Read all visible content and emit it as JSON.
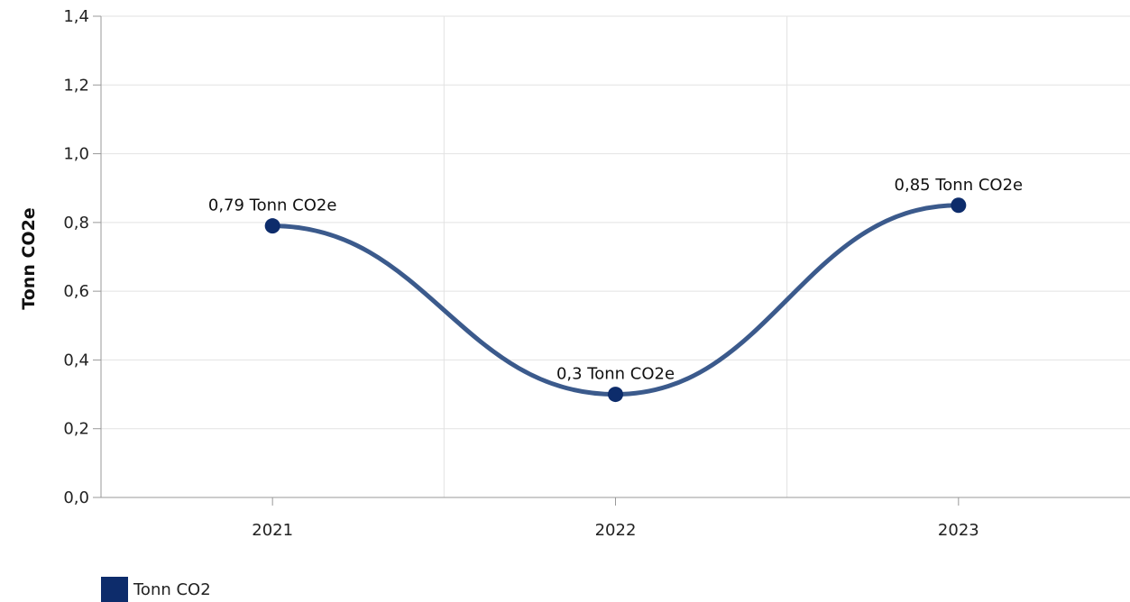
{
  "chart_data": {
    "type": "line",
    "categories": [
      "2021",
      "2022",
      "2023"
    ],
    "series": [
      {
        "name": "Tonn CO2",
        "values": [
          0.79,
          0.3,
          0.85
        ],
        "data_labels": [
          "0,79 Tonn CO2e",
          "0,3 Tonn CO2e",
          "0,85 Tonn CO2e"
        ],
        "color": "#3b5a8c",
        "marker_color": "#0d2c6b"
      }
    ],
    "ylabel": "Tonn CO2e",
    "ylim": [
      0,
      1.4
    ],
    "yticks": [
      0,
      0.2,
      0.4,
      0.6,
      0.8,
      1.0,
      1.2,
      1.4
    ],
    "ytick_labels": [
      "0,0",
      "0,2",
      "0,4",
      "0,6",
      "0,8",
      "1,0",
      "1,2",
      "1,4"
    ],
    "grid": true,
    "legend_position": "bottom-left",
    "legend": [
      {
        "label": "Tonn CO2",
        "color": "#0d2c6b"
      }
    ]
  }
}
